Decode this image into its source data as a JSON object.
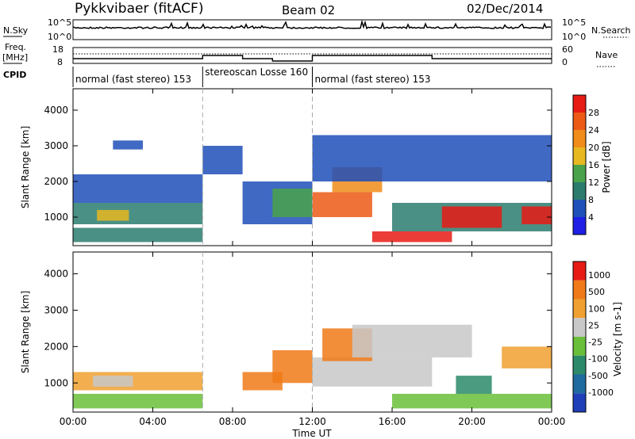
{
  "header": {
    "station": "Pykkvibaer (fitACF)",
    "beam": "Beam 02",
    "date": "02/Dec/2014"
  },
  "strip_labels": {
    "nsky": "N.Sky",
    "nsearch": "N.Search",
    "freq_top": "Freq.",
    "freq_unit": "[MHz]",
    "cpid": "CPID",
    "nave": "Nave",
    "nsky_ticks": [
      "10^5",
      "10^0"
    ],
    "nsearch_ticks": [
      "10^5",
      "10^0"
    ],
    "freq_ticks": [
      "18",
      "8"
    ],
    "nave_ticks": [
      "60",
      "0"
    ]
  },
  "cpid_modes": [
    {
      "label": "normal (fast stereo) 153",
      "start_h": 0.0,
      "end_h": 6.5
    },
    {
      "label": "stereoscan Losse 160",
      "start_h": 6.5,
      "end_h": 12.0
    },
    {
      "label": "normal (fast stereo) 153",
      "start_h": 12.0,
      "end_h": 24.0
    }
  ],
  "time_axis": {
    "label": "Time UT",
    "ticks": [
      "00:00",
      "04:00",
      "08:00",
      "12:00",
      "16:00",
      "20:00",
      "00:00"
    ]
  },
  "colors": {
    "power": [
      "#1f1fe6",
      "#1f4fb8",
      "#2c7c6e",
      "#4aa34a",
      "#e8b820",
      "#f08c1a",
      "#ec5a16",
      "#e81a14"
    ],
    "velocity": [
      "#1f3fb8",
      "#1f6a9e",
      "#2c8a6a",
      "#6abf3a",
      "#c8c8c8",
      "#f0a030",
      "#f07a18",
      "#e81a14"
    ]
  },
  "chart_data": [
    {
      "type": "heatmap",
      "title": "",
      "xlabel": "Time UT",
      "ylabel": "Slant Range [km]",
      "xlim": [
        0,
        24
      ],
      "ylim": [
        200,
        4600
      ],
      "yticks": [
        "1000",
        "2000",
        "3000",
        "4000"
      ],
      "colorbar": {
        "label": "Power [dB]",
        "ticks": [
          "4",
          "8",
          "12",
          "16",
          "20",
          "24",
          "28"
        ],
        "range": [
          0,
          32
        ]
      },
      "regions": [
        {
          "t0": 0.0,
          "t1": 6.5,
          "r0": 800,
          "r1": 1400,
          "level": 2
        },
        {
          "t0": 0.0,
          "t1": 6.5,
          "r0": 1400,
          "r1": 2200,
          "level": 1
        },
        {
          "t0": 0.0,
          "t1": 6.5,
          "r0": 300,
          "r1": 700,
          "level": 2
        },
        {
          "t0": 1.2,
          "t1": 2.8,
          "r0": 900,
          "r1": 1200,
          "level": 4
        },
        {
          "t0": 2.0,
          "t1": 3.5,
          "r0": 2900,
          "r1": 3150,
          "level": 1
        },
        {
          "t0": 6.5,
          "t1": 8.5,
          "r0": 2200,
          "r1": 3000,
          "level": 1
        },
        {
          "t0": 8.5,
          "t1": 12.0,
          "r0": 800,
          "r1": 2000,
          "level": 1
        },
        {
          "t0": 10.0,
          "t1": 12.0,
          "r0": 1000,
          "r1": 1800,
          "level": 3
        },
        {
          "t0": 12.0,
          "t1": 15.0,
          "r0": 1000,
          "r1": 1700,
          "level": 6
        },
        {
          "t0": 13.0,
          "t1": 15.5,
          "r0": 1700,
          "r1": 2400,
          "level": 5
        },
        {
          "t0": 15.0,
          "t1": 19.0,
          "r0": 300,
          "r1": 600,
          "level": 7
        },
        {
          "t0": 16.0,
          "t1": 24.0,
          "r0": 600,
          "r1": 1400,
          "level": 2
        },
        {
          "t0": 18.5,
          "t1": 21.5,
          "r0": 700,
          "r1": 1300,
          "level": 7
        },
        {
          "t0": 22.5,
          "t1": 24.0,
          "r0": 800,
          "r1": 1300,
          "level": 7
        },
        {
          "t0": 12.0,
          "t1": 24.0,
          "r0": 2000,
          "r1": 3300,
          "level": 1
        }
      ]
    },
    {
      "type": "heatmap",
      "title": "",
      "xlabel": "Time UT",
      "ylabel": "Slant Range [km]",
      "xlim": [
        0,
        24
      ],
      "ylim": [
        200,
        4600
      ],
      "yticks": [
        "1000",
        "2000",
        "3000",
        "4000"
      ],
      "colorbar": {
        "label": "Velocity [m s-1]",
        "ticks": [
          "1000",
          "500",
          "100",
          "25",
          "-25",
          "-100",
          "-500",
          "-1000"
        ]
      },
      "regions": [
        {
          "t0": 0.0,
          "t1": 6.5,
          "r0": 800,
          "r1": 1300,
          "level": 5
        },
        {
          "t0": 1.0,
          "t1": 3.0,
          "r0": 900,
          "r1": 1200,
          "level": 4
        },
        {
          "t0": 0.0,
          "t1": 6.5,
          "r0": 300,
          "r1": 700,
          "level": 3
        },
        {
          "t0": 8.5,
          "t1": 10.5,
          "r0": 800,
          "r1": 1300,
          "level": 6
        },
        {
          "t0": 10.0,
          "t1": 12.0,
          "r0": 1000,
          "r1": 1900,
          "level": 6
        },
        {
          "t0": 12.0,
          "t1": 18.0,
          "r0": 900,
          "r1": 1700,
          "level": 4
        },
        {
          "t0": 12.5,
          "t1": 15.0,
          "r0": 1600,
          "r1": 2500,
          "level": 6
        },
        {
          "t0": 14.0,
          "t1": 20.0,
          "r0": 1700,
          "r1": 2600,
          "level": 4
        },
        {
          "t0": 19.2,
          "t1": 21.0,
          "r0": 700,
          "r1": 1200,
          "level": 2
        },
        {
          "t0": 16.0,
          "t1": 24.0,
          "r0": 300,
          "r1": 700,
          "level": 3
        },
        {
          "t0": 21.5,
          "t1": 24.0,
          "r0": 1400,
          "r1": 2000,
          "level": 5
        }
      ]
    }
  ]
}
